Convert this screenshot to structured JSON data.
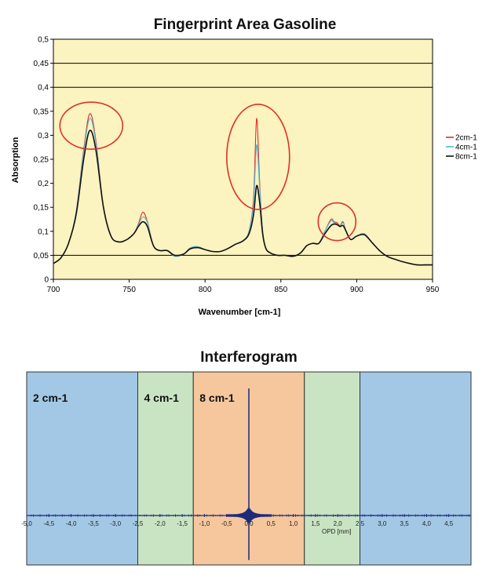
{
  "chart_data": [
    {
      "type": "line",
      "title": "Fingerprint Area Gasoline",
      "xlabel": "Wavenumber [cm-1]",
      "ylabel": "Absorption",
      "xlim": [
        700,
        950
      ],
      "ylim": [
        0,
        0.5
      ],
      "x_ticks": [
        "700",
        "750",
        "800",
        "850",
        "900",
        "950"
      ],
      "y_ticks": [
        "0",
        "0,05",
        "0,1",
        "0,15",
        "0,2",
        "0,25",
        "0,3",
        "0,35",
        "0,4",
        "0,45",
        "0,5"
      ],
      "grid": "horizontal lines at 0,05, 0,4, 0,45",
      "legend_position": "right",
      "x": [
        700,
        705,
        710,
        715,
        720,
        724,
        728,
        733,
        738,
        743,
        748,
        753,
        756,
        759,
        762,
        766,
        770,
        775,
        780,
        786,
        790,
        795,
        800,
        805,
        810,
        815,
        820,
        825,
        829,
        832,
        834,
        836,
        838,
        840,
        843,
        848,
        853,
        858,
        863,
        867,
        871,
        875,
        879,
        883,
        885,
        887,
        889,
        891,
        893,
        896,
        900,
        905,
        910,
        915,
        920,
        925,
        930,
        935,
        940,
        945,
        950
      ],
      "series": [
        {
          "name": "2cm-1",
          "color": "#e0302a",
          "values": [
            0.033,
            0.045,
            0.075,
            0.14,
            0.27,
            0.345,
            0.29,
            0.15,
            0.09,
            0.078,
            0.082,
            0.095,
            0.115,
            0.14,
            0.12,
            0.07,
            0.06,
            0.06,
            0.048,
            0.053,
            0.065,
            0.068,
            0.062,
            0.058,
            0.058,
            0.064,
            0.073,
            0.08,
            0.1,
            0.17,
            0.335,
            0.2,
            0.1,
            0.065,
            0.055,
            0.05,
            0.05,
            0.048,
            0.055,
            0.07,
            0.075,
            0.075,
            0.1,
            0.125,
            0.12,
            0.118,
            0.112,
            0.12,
            0.1,
            0.083,
            0.09,
            0.095,
            0.077,
            0.06,
            0.048,
            0.042,
            0.037,
            0.033,
            0.03,
            0.03,
            0.03
          ]
        },
        {
          "name": "4cm-1",
          "color": "#4ab8d8",
          "values": [
            0.033,
            0.045,
            0.075,
            0.14,
            0.265,
            0.335,
            0.285,
            0.15,
            0.09,
            0.078,
            0.082,
            0.095,
            0.113,
            0.13,
            0.118,
            0.07,
            0.06,
            0.06,
            0.048,
            0.053,
            0.065,
            0.068,
            0.062,
            0.058,
            0.058,
            0.064,
            0.073,
            0.08,
            0.1,
            0.16,
            0.28,
            0.19,
            0.1,
            0.065,
            0.055,
            0.05,
            0.05,
            0.048,
            0.055,
            0.07,
            0.075,
            0.075,
            0.1,
            0.122,
            0.118,
            0.116,
            0.11,
            0.118,
            0.1,
            0.083,
            0.09,
            0.095,
            0.077,
            0.06,
            0.048,
            0.042,
            0.037,
            0.033,
            0.03,
            0.03,
            0.03
          ]
        },
        {
          "name": "8cm-1",
          "color": "#111111",
          "values": [
            0.033,
            0.045,
            0.075,
            0.135,
            0.25,
            0.31,
            0.27,
            0.15,
            0.09,
            0.078,
            0.082,
            0.095,
            0.11,
            0.12,
            0.11,
            0.07,
            0.06,
            0.06,
            0.05,
            0.053,
            0.063,
            0.066,
            0.062,
            0.058,
            0.058,
            0.064,
            0.073,
            0.08,
            0.095,
            0.135,
            0.195,
            0.16,
            0.095,
            0.065,
            0.055,
            0.05,
            0.05,
            0.048,
            0.055,
            0.07,
            0.075,
            0.075,
            0.095,
            0.112,
            0.115,
            0.114,
            0.11,
            0.112,
            0.1,
            0.083,
            0.09,
            0.093,
            0.077,
            0.06,
            0.048,
            0.042,
            0.037,
            0.033,
            0.03,
            0.03,
            0.03
          ]
        }
      ],
      "highlight_circles": [
        {
          "cx": 725,
          "cy": 0.32
        },
        {
          "cx": 835,
          "cy": 0.255
        },
        {
          "cx": 887,
          "cy": 0.12
        }
      ]
    },
    {
      "type": "line",
      "title": "Interferogram",
      "xlabel": "OPD [mm]",
      "ylabel": "",
      "xlim": [
        -5.0,
        5.0
      ],
      "x_ticks": [
        "-5,0",
        "-4,5",
        "-4,0",
        "-3,5",
        "-3,0",
        "-2,5",
        "-2,0",
        "-1,5",
        "-1,0",
        "-0,5",
        "0,0",
        "0,5",
        "1,0",
        "1,5",
        "2,0",
        "2,5",
        "3,0",
        "3,5",
        "4,0",
        "4,5"
      ],
      "bands": [
        {
          "label": "2 cm-1",
          "from": -5.0,
          "to": -2.5,
          "color": "#a3c8e6"
        },
        {
          "label": "4 cm-1",
          "from": -2.5,
          "to": -1.25,
          "color": "#c9e4c2"
        },
        {
          "label": "8 cm-1",
          "from": -1.25,
          "to": 1.25,
          "color": "#f6c79d"
        },
        {
          "label": "",
          "from": 1.25,
          "to": 2.5,
          "color": "#c9e4c2"
        },
        {
          "label": "",
          "from": 2.5,
          "to": 5.0,
          "color": "#a3c8e6"
        }
      ],
      "centerburst": {
        "x": 0.0,
        "max": 1.0,
        "min": -0.35
      },
      "line_color": "#1f2a7a"
    }
  ]
}
